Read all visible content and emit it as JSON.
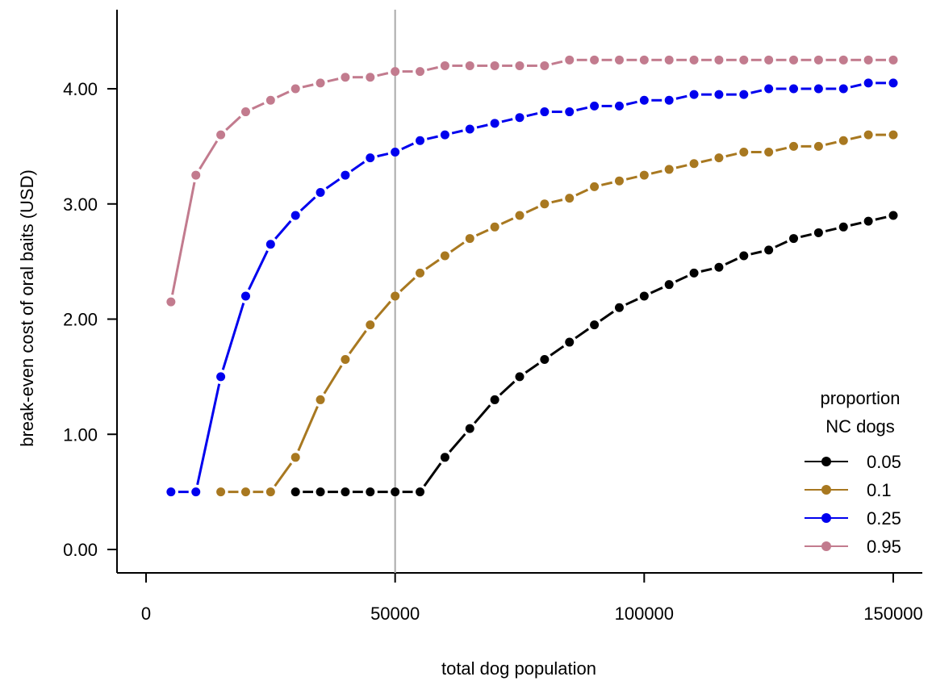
{
  "chart_data": {
    "type": "line",
    "title": "",
    "xlabel": "total dog population",
    "ylabel": "break-even cost of oral baits (USD)",
    "xlim": [
      0,
      150000
    ],
    "ylim": [
      0,
      4.25
    ],
    "x_ticks": [
      0,
      50000,
      100000,
      150000
    ],
    "x_tick_labels": [
      "0",
      "50000",
      "100000",
      "150000"
    ],
    "y_ticks": [
      0,
      1,
      2,
      3,
      4
    ],
    "y_tick_labels": [
      "0.00",
      "1.00",
      "2.00",
      "3.00",
      "4.00"
    ],
    "reference_line": {
      "x": 50000,
      "color": "#aaaaaa"
    },
    "grid": false,
    "legend": {
      "title_line1": "proportion",
      "title_line2": "NC dogs",
      "placement": "bottom-right"
    },
    "x": [
      5000,
      10000,
      15000,
      20000,
      25000,
      30000,
      35000,
      40000,
      45000,
      50000,
      55000,
      60000,
      65000,
      70000,
      75000,
      80000,
      85000,
      90000,
      95000,
      100000,
      105000,
      110000,
      115000,
      120000,
      125000,
      130000,
      135000,
      140000,
      145000,
      150000
    ],
    "series": [
      {
        "name": "0.05",
        "color": "#000000",
        "values": [
          null,
          null,
          null,
          null,
          null,
          0.5,
          0.5,
          0.5,
          0.5,
          0.5,
          0.5,
          0.8,
          1.05,
          1.3,
          1.5,
          1.65,
          1.8,
          1.95,
          2.1,
          2.2,
          2.3,
          2.4,
          2.45,
          2.55,
          2.6,
          2.7,
          2.75,
          2.8,
          2.85,
          2.9
        ]
      },
      {
        "name": "0.1",
        "color": "#a87820",
        "values": [
          null,
          null,
          0.5,
          0.5,
          0.5,
          0.8,
          1.3,
          1.65,
          1.95,
          2.2,
          2.4,
          2.55,
          2.7,
          2.8,
          2.9,
          3.0,
          3.05,
          3.15,
          3.2,
          3.25,
          3.3,
          3.35,
          3.4,
          3.45,
          3.45,
          3.5,
          3.5,
          3.55,
          3.6,
          3.6
        ]
      },
      {
        "name": "0.25",
        "color": "#0000ee",
        "values": [
          0.5,
          0.5,
          1.5,
          2.2,
          2.65,
          2.9,
          3.1,
          3.25,
          3.4,
          3.45,
          3.55,
          3.6,
          3.65,
          3.7,
          3.75,
          3.8,
          3.8,
          3.85,
          3.85,
          3.9,
          3.9,
          3.95,
          3.95,
          3.95,
          4.0,
          4.0,
          4.0,
          4.0,
          4.05,
          4.05
        ]
      },
      {
        "name": "0.95",
        "color": "#c27b8e",
        "values": [
          2.15,
          3.25,
          3.6,
          3.8,
          3.9,
          4.0,
          4.05,
          4.1,
          4.1,
          4.15,
          4.15,
          4.2,
          4.2,
          4.2,
          4.2,
          4.2,
          4.25,
          4.25,
          4.25,
          4.25,
          4.25,
          4.25,
          4.25,
          4.25,
          4.25,
          4.25,
          4.25,
          4.25,
          4.25,
          4.25
        ]
      }
    ]
  }
}
